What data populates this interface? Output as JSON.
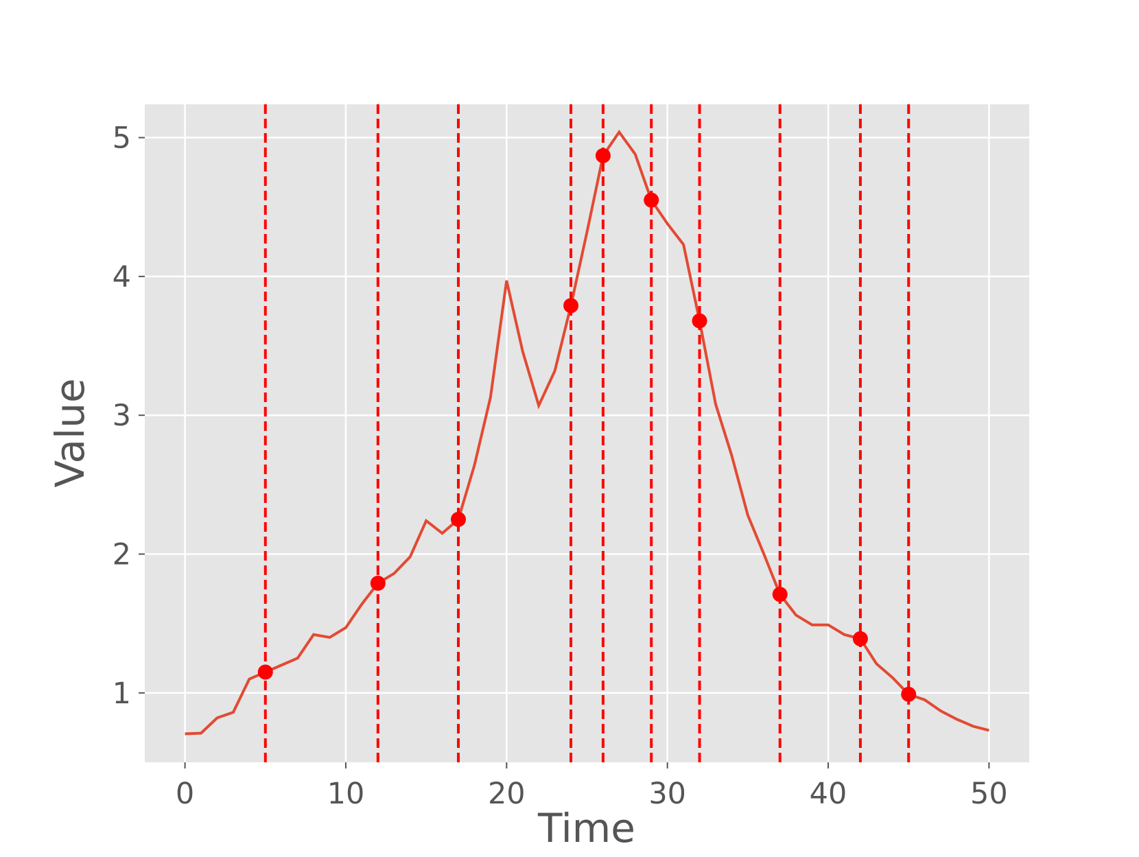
{
  "chart_data": {
    "type": "line",
    "x_label": "Time",
    "y_label": "Value",
    "x": [
      0,
      1,
      2,
      3,
      4,
      5,
      6,
      7,
      8,
      9,
      10,
      11,
      12,
      13,
      14,
      15,
      16,
      17,
      18,
      19,
      20,
      21,
      22,
      23,
      24,
      25,
      26,
      27,
      28,
      29,
      30,
      31,
      32,
      33,
      34,
      35,
      36,
      37,
      38,
      39,
      40,
      41,
      42,
      43,
      44,
      45,
      46,
      47,
      48,
      49,
      50
    ],
    "series": [
      {
        "color": "#e24a33",
        "values": [
          0.705,
          0.71,
          0.82,
          0.86,
          1.1,
          1.15,
          1.2,
          1.25,
          1.42,
          1.4,
          1.47,
          1.64,
          1.79,
          1.86,
          1.98,
          2.24,
          2.15,
          2.25,
          2.64,
          3.13,
          3.97,
          3.46,
          3.07,
          3.32,
          3.79,
          4.32,
          4.87,
          5.04,
          4.88,
          4.55,
          4.38,
          4.23,
          3.68,
          3.08,
          2.71,
          2.28,
          2.0,
          1.71,
          1.56,
          1.49,
          1.49,
          1.42,
          1.39,
          1.21,
          1.11,
          0.99,
          0.95,
          0.87,
          0.81,
          0.76,
          0.73
        ]
      }
    ],
    "markers": {
      "color": "#ff0000",
      "x": [
        5,
        12,
        17,
        24,
        26,
        29,
        32,
        37,
        42,
        45
      ],
      "values": [
        1.15,
        1.79,
        2.25,
        3.79,
        4.87,
        4.55,
        3.68,
        1.71,
        1.39,
        0.99
      ]
    },
    "xlim": [
      -2.5,
      52.5
    ],
    "ylim": [
      0.5,
      5.24
    ],
    "xticks": [
      0,
      10,
      20,
      30,
      40,
      50
    ],
    "yticks": [
      1,
      2,
      3,
      4,
      5
    ],
    "grid": true
  }
}
